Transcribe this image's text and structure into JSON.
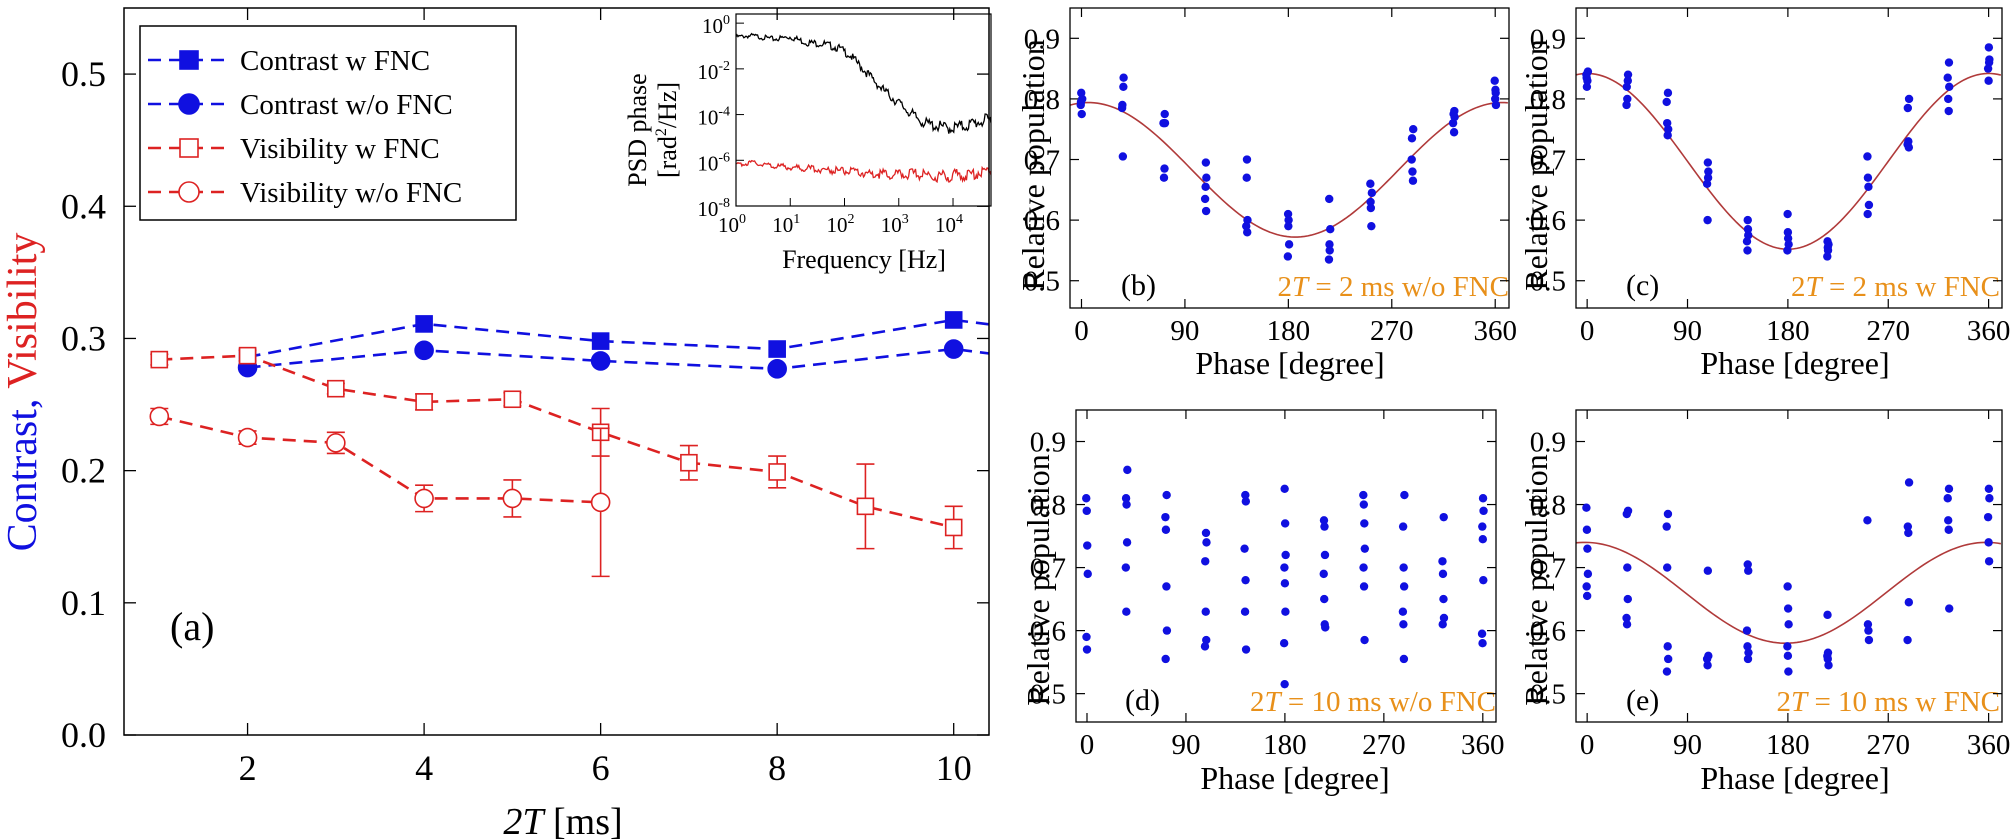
{
  "colors": {
    "blue": "#1010e0",
    "red": "#dd2222",
    "fit": "#b03a3a",
    "orange": "#e8901a",
    "black": "#000000"
  },
  "chart_data": [
    {
      "id": "a",
      "type": "line",
      "panel_label": "(a)",
      "xlabel_pre": "2",
      "xlabel_italic": "T",
      "xlabel_post": " [ms]",
      "ylabel_blue": "Contrast,",
      "ylabel_red": "Visibility",
      "xlim": [
        0.6,
        10.4
      ],
      "ylim": [
        0,
        0.55
      ],
      "xticks": [
        2,
        4,
        6,
        8,
        10
      ],
      "yticks": [
        "0.0",
        "0.1",
        "0.2",
        "0.3",
        "0.4",
        "0.5"
      ],
      "legend": "top-left",
      "series": [
        {
          "name": "Contrast w FNC",
          "color": "blue",
          "marker": "square",
          "filled": true,
          "x": [
            2,
            4,
            6,
            8,
            10,
            10.6
          ],
          "y": [
            0.286,
            0.311,
            0.298,
            0.292,
            0.314,
            0.309
          ],
          "err": [
            0,
            0,
            0,
            0,
            0,
            0
          ]
        },
        {
          "name": "Contrast w/o FNC",
          "color": "blue",
          "marker": "circle",
          "filled": true,
          "x": [
            2,
            4,
            6,
            8,
            10,
            10.6
          ],
          "y": [
            0.278,
            0.291,
            0.283,
            0.277,
            0.292,
            0.287
          ],
          "err": [
            0,
            0,
            0,
            0,
            0,
            0
          ]
        },
        {
          "name": "Visibility w FNC",
          "color": "red",
          "marker": "square",
          "filled": false,
          "x": [
            1,
            2,
            3,
            4,
            5,
            6,
            7,
            8,
            9,
            10
          ],
          "y": [
            0.284,
            0.287,
            0.262,
            0.252,
            0.254,
            0.229,
            0.206,
            0.199,
            0.173,
            0.157
          ],
          "err": [
            0.004,
            0.004,
            0.004,
            0.006,
            0.005,
            0.018,
            0.013,
            0.012,
            0.032,
            0.016
          ]
        },
        {
          "name": "Visibility w/o FNC",
          "color": "red",
          "marker": "circle",
          "filled": false,
          "x": [
            1,
            2,
            3,
            4,
            5,
            6
          ],
          "y": [
            0.241,
            0.225,
            0.221,
            0.179,
            0.179,
            0.176
          ],
          "err": [
            0.006,
            0.005,
            0.008,
            0.01,
            0.014,
            0.056
          ]
        }
      ],
      "inset": {
        "type": "line",
        "xscale": "log",
        "yscale": "log",
        "xlabel": "Frequency [Hz]",
        "ylabel_line1": "PSD phase",
        "ylabel_line2_pre": "[rad",
        "ylabel_line2_sup": "2",
        "ylabel_line2_post": "/Hz]",
        "xlim_exp": [
          0,
          4.7
        ],
        "ylim_exp": [
          -8,
          0.4
        ],
        "xtick_exps": [
          0,
          1,
          2,
          3,
          4
        ],
        "ytick_exps": [
          0,
          -2,
          -4,
          -6,
          -8
        ],
        "tick_base": "10",
        "tick_exp_labels": [
          "0",
          "1",
          "2",
          "3",
          "4"
        ],
        "ytick_exp_labels": [
          "0",
          "-2",
          "-4",
          "-6",
          "-8"
        ],
        "series": [
          {
            "color": "black",
            "logx": [
              0,
              0.3,
              0.7,
              1.0,
              1.3,
              1.6,
              1.9,
              2.1,
              2.3,
              2.5,
              2.7,
              2.9,
              3.1,
              3.3,
              3.5,
              3.7,
              3.9,
              4.1,
              4.3,
              4.5,
              4.7
            ],
            "logy": [
              -0.6,
              -0.55,
              -0.7,
              -0.6,
              -0.85,
              -0.9,
              -1.1,
              -1.4,
              -1.9,
              -2.4,
              -2.9,
              -3.3,
              -3.7,
              -4.1,
              -4.4,
              -4.5,
              -4.6,
              -4.55,
              -4.45,
              -4.3,
              -4.25
            ]
          },
          {
            "color": "red",
            "logx": [
              0,
              0.3,
              0.7,
              1.0,
              1.3,
              1.6,
              1.9,
              2.1,
              2.3,
              2.5,
              2.7,
              2.9,
              3.1,
              3.3,
              3.5,
              3.7,
              3.9,
              4.1,
              4.3,
              4.5,
              4.7
            ],
            "logy": [
              -6.2,
              -6.1,
              -6.25,
              -6.3,
              -6.35,
              -6.4,
              -6.45,
              -6.5,
              -6.55,
              -6.6,
              -6.6,
              -6.65,
              -6.6,
              -6.6,
              -6.65,
              -6.7,
              -6.7,
              -6.65,
              -6.65,
              -6.5,
              -6.4
            ]
          }
        ]
      }
    },
    {
      "id": "b",
      "type": "scatter",
      "panel_label": "(b)",
      "annotation_pre": "2",
      "annotation_italic": "T",
      "annotation_post": " = 2 ms w/o FNC",
      "xlabel": "Phase [degree]",
      "ylabel": "Relative population",
      "xlim": [
        -10,
        372
      ],
      "ylim": [
        0.455,
        0.95
      ],
      "xticks": [
        0,
        90,
        180,
        270,
        360
      ],
      "yticks": [
        "0.5",
        "0.6",
        "0.7",
        "0.8",
        "0.9"
      ],
      "fit": {
        "offset": 0.683,
        "amplitude": 0.111,
        "phase_min": 186
      },
      "phases": [
        0,
        36,
        72,
        108,
        144,
        180,
        216,
        252,
        288,
        324,
        360
      ],
      "points": [
        [
          0.79,
          0.81,
          0.775,
          0.8,
          0.795
        ],
        [
          0.835,
          0.79,
          0.705,
          0.82,
          0.785
        ],
        [
          0.775,
          0.76,
          0.67,
          0.685,
          0.76
        ],
        [
          0.695,
          0.67,
          0.635,
          0.655,
          0.615
        ],
        [
          0.7,
          0.6,
          0.59,
          0.67,
          0.58
        ],
        [
          0.61,
          0.6,
          0.56,
          0.54,
          0.59
        ],
        [
          0.635,
          0.55,
          0.585,
          0.535,
          0.56
        ],
        [
          0.66,
          0.62,
          0.59,
          0.645,
          0.63
        ],
        [
          0.75,
          0.735,
          0.68,
          0.665,
          0.7
        ],
        [
          0.78,
          0.76,
          0.775,
          0.745,
          0.77
        ],
        [
          0.815,
          0.79,
          0.83,
          0.8,
          0.81
        ]
      ]
    },
    {
      "id": "c",
      "type": "scatter",
      "panel_label": "(c)",
      "annotation_pre": "2",
      "annotation_italic": "T",
      "annotation_post": " = 2 ms w FNC",
      "xlabel": "Phase [degree]",
      "ylabel": "Relative population",
      "xlim": [
        -10,
        372
      ],
      "ylim": [
        0.455,
        0.95
      ],
      "xticks": [
        0,
        90,
        180,
        270,
        360
      ],
      "yticks": [
        "0.5",
        "0.6",
        "0.7",
        "0.8",
        "0.9"
      ],
      "fit": {
        "offset": 0.697,
        "amplitude": 0.145,
        "phase_min": 180
      },
      "phases": [
        0,
        36,
        72,
        108,
        144,
        180,
        216,
        252,
        288,
        324,
        360
      ],
      "points": [
        [
          0.84,
          0.82,
          0.83,
          0.845,
          0.835
        ],
        [
          0.84,
          0.82,
          0.8,
          0.83,
          0.79
        ],
        [
          0.81,
          0.795,
          0.76,
          0.74,
          0.75
        ],
        [
          0.695,
          0.68,
          0.66,
          0.6,
          0.67
        ],
        [
          0.6,
          0.575,
          0.565,
          0.55,
          0.585
        ],
        [
          0.61,
          0.57,
          0.56,
          0.55,
          0.58
        ],
        [
          0.565,
          0.55,
          0.56,
          0.54,
          0.555
        ],
        [
          0.705,
          0.67,
          0.655,
          0.625,
          0.61
        ],
        [
          0.8,
          0.785,
          0.73,
          0.72,
          0.725
        ],
        [
          0.86,
          0.835,
          0.8,
          0.78,
          0.82
        ],
        [
          0.885,
          0.865,
          0.85,
          0.83,
          0.86
        ]
      ]
    },
    {
      "id": "d",
      "type": "scatter",
      "panel_label": "(d)",
      "annotation_pre": "2",
      "annotation_italic": "T",
      "annotation_post": " = 10 ms w/o FNC",
      "xlabel": "Phase [degree]",
      "ylabel": "Relative population",
      "xlim": [
        -10,
        372
      ],
      "ylim": [
        0.455,
        0.95
      ],
      "xticks": [
        0,
        90,
        180,
        270,
        360
      ],
      "yticks": [
        "0.5",
        "0.6",
        "0.7",
        "0.8",
        "0.9"
      ],
      "phases": [
        0,
        36,
        72,
        108,
        144,
        180,
        216,
        252,
        288,
        324,
        360
      ],
      "points": [
        [
          0.81,
          0.79,
          0.735,
          0.69,
          0.59,
          0.57
        ],
        [
          0.855,
          0.81,
          0.8,
          0.74,
          0.7,
          0.63
        ],
        [
          0.815,
          0.78,
          0.76,
          0.67,
          0.6,
          0.555
        ],
        [
          0.755,
          0.74,
          0.71,
          0.63,
          0.585,
          0.575
        ],
        [
          0.815,
          0.805,
          0.73,
          0.63,
          0.68,
          0.57
        ],
        [
          0.825,
          0.77,
          0.72,
          0.7,
          0.675,
          0.63,
          0.58,
          0.515
        ],
        [
          0.775,
          0.765,
          0.72,
          0.69,
          0.65,
          0.61,
          0.605
        ],
        [
          0.815,
          0.8,
          0.77,
          0.73,
          0.7,
          0.67,
          0.585
        ],
        [
          0.815,
          0.765,
          0.7,
          0.67,
          0.63,
          0.61,
          0.555
        ],
        [
          0.78,
          0.71,
          0.69,
          0.65,
          0.62,
          0.61
        ],
        [
          0.81,
          0.79,
          0.765,
          0.745,
          0.68,
          0.595,
          0.58
        ]
      ]
    },
    {
      "id": "e",
      "type": "scatter",
      "panel_label": "(e)",
      "annotation_pre": "2",
      "annotation_italic": "T",
      "annotation_post": " = 10 ms w FNC",
      "xlabel": "Phase [degree]",
      "ylabel": "Relative population",
      "xlim": [
        -10,
        372
      ],
      "ylim": [
        0.455,
        0.95
      ],
      "xticks": [
        0,
        90,
        180,
        270,
        360
      ],
      "yticks": [
        "0.5",
        "0.6",
        "0.7",
        "0.8",
        "0.9"
      ],
      "fit": {
        "offset": 0.66,
        "amplitude": 0.08,
        "phase_min": 178
      },
      "phases": [
        0,
        36,
        72,
        108,
        144,
        180,
        216,
        252,
        288,
        324,
        360
      ],
      "points": [
        [
          0.795,
          0.76,
          0.73,
          0.69,
          0.67,
          0.655
        ],
        [
          0.79,
          0.785,
          0.7,
          0.65,
          0.62,
          0.61
        ],
        [
          0.785,
          0.765,
          0.7,
          0.575,
          0.555,
          0.535
        ],
        [
          0.695,
          0.56,
          0.555,
          0.545
        ],
        [
          0.705,
          0.695,
          0.6,
          0.575,
          0.555,
          0.565
        ],
        [
          0.67,
          0.635,
          0.61,
          0.575,
          0.56,
          0.535
        ],
        [
          0.625,
          0.565,
          0.545,
          0.56,
          0.555
        ],
        [
          0.775,
          0.61,
          0.6,
          0.585
        ],
        [
          0.835,
          0.765,
          0.755,
          0.645,
          0.585
        ],
        [
          0.825,
          0.81,
          0.775,
          0.76,
          0.635
        ],
        [
          0.825,
          0.81,
          0.78,
          0.74,
          0.71
        ]
      ]
    }
  ]
}
